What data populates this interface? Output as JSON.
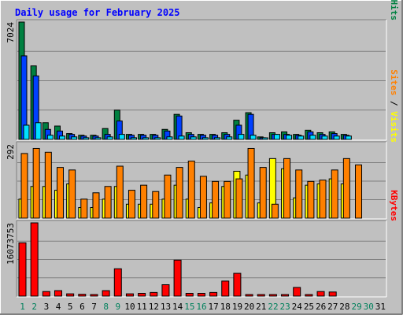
{
  "chart_data": [
    {
      "type": "bar",
      "title": "Daily usage for February 2025",
      "panel": "top",
      "categories": [
        "1",
        "2",
        "3",
        "4",
        "5",
        "6",
        "7",
        "8",
        "9",
        "10",
        "11",
        "12",
        "13",
        "14",
        "15",
        "16",
        "17",
        "18",
        "19",
        "20",
        "21",
        "22",
        "23",
        "24",
        "25",
        "26",
        "27",
        "28",
        "29",
        "30",
        "31"
      ],
      "ylabel_max": "7024",
      "ylim": [
        0,
        7024
      ],
      "series": [
        {
          "name": "Hits",
          "color": "#008040",
          "values": [
            7024,
            4400,
            1000,
            800,
            350,
            250,
            250,
            650,
            1750,
            300,
            300,
            300,
            600,
            1500,
            400,
            300,
            300,
            400,
            1150,
            1600,
            150,
            400,
            450,
            300,
            550,
            400,
            450,
            300,
            0,
            0,
            0
          ]
        },
        {
          "name": "Files",
          "color": "#0040ff",
          "values": [
            5000,
            3800,
            600,
            500,
            300,
            200,
            200,
            300,
            1100,
            250,
            250,
            250,
            500,
            1400,
            300,
            250,
            250,
            300,
            850,
            1500,
            100,
            300,
            300,
            250,
            450,
            300,
            350,
            250,
            0,
            0,
            0
          ]
        },
        {
          "name": "Pages",
          "color": "#00e0ff",
          "values": [
            850,
            1000,
            250,
            200,
            150,
            100,
            100,
            150,
            300,
            100,
            100,
            100,
            150,
            200,
            150,
            100,
            100,
            150,
            300,
            250,
            50,
            300,
            250,
            200,
            250,
            200,
            200,
            200,
            0,
            0,
            0
          ]
        }
      ],
      "axis_label_parts": [
        {
          "text": "Pages",
          "color": "#00e0ff"
        },
        {
          "text": " / ",
          "color": "#000000"
        },
        {
          "text": "Files",
          "color": "#0040ff"
        },
        {
          "text": " / ",
          "color": "#000000"
        },
        {
          "text": "Hits",
          "color": "#008040"
        }
      ]
    },
    {
      "type": "bar",
      "panel": "middle",
      "ylabel_max": "292",
      "ylim": [
        0,
        292
      ],
      "series": [
        {
          "name": "Visits",
          "color": "#ffff00",
          "values": [
            75,
            125,
            125,
            110,
            135,
            42,
            42,
            75,
            125,
            55,
            55,
            55,
            75,
            130,
            75,
            42,
            60,
            125,
            185,
            170,
            60,
            235,
            195,
            80,
            130,
            135,
            155,
            135,
            0,
            0,
            0
          ]
        },
        {
          "name": "Sites",
          "color": "#ff8000",
          "values": [
            255,
            275,
            260,
            200,
            190,
            75,
            100,
            125,
            205,
            110,
            130,
            105,
            170,
            200,
            225,
            165,
            145,
            145,
            155,
            275,
            200,
            55,
            235,
            190,
            145,
            150,
            190,
            235,
            210,
            0,
            0
          ]
        }
      ],
      "axis_label_parts": [
        {
          "text": "Sites",
          "color": "#ff8000"
        },
        {
          "text": " / ",
          "color": "#000000"
        },
        {
          "text": "Visits",
          "color": "#ffff00"
        }
      ]
    },
    {
      "type": "bar",
      "panel": "bottom",
      "ylabel_max": "16073753",
      "ylim": [
        0,
        16073753
      ],
      "series": [
        {
          "name": "KBytes",
          "color": "#ff0000",
          "values": [
            11700000,
            16073753,
            1000000,
            1200000,
            500000,
            400000,
            250000,
            1200000,
            6000000,
            500000,
            600000,
            800000,
            2500000,
            7900000,
            600000,
            600000,
            800000,
            3300000,
            5000000,
            150000,
            150000,
            150000,
            150000,
            1900000,
            200000,
            1000000,
            900000,
            0,
            0,
            0,
            0
          ]
        }
      ],
      "axis_label_parts": [
        {
          "text": "KBytes",
          "color": "#ff0000"
        }
      ]
    }
  ],
  "x_axis": {
    "labels": [
      "1",
      "2",
      "3",
      "4",
      "5",
      "6",
      "7",
      "8",
      "9",
      "10",
      "11",
      "12",
      "13",
      "14",
      "15",
      "16",
      "17",
      "18",
      "19",
      "20",
      "21",
      "22",
      "23",
      "24",
      "25",
      "26",
      "27",
      "28",
      "29",
      "30",
      "31"
    ],
    "weekend_days": [
      1,
      2,
      8,
      9,
      15,
      16,
      22,
      23,
      29,
      30
    ],
    "weekend_color": "#00805c",
    "weekday_color": "#000000"
  },
  "colors": {
    "background": "#c0c0c0",
    "plot": "#c0c0c0",
    "title": "#0000ff"
  }
}
